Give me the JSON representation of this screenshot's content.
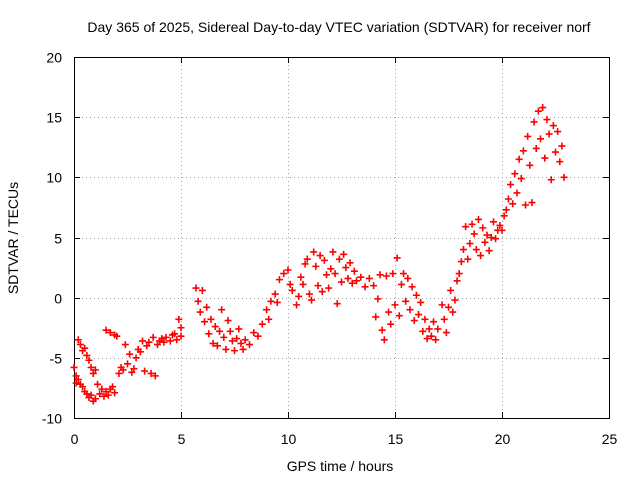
{
  "chart_data": {
    "type": "scatter",
    "title": "Day 365 of 2025, Sidereal Day-to-day VTEC variation (SDTVAR) for receiver norf",
    "xlabel": "GPS time / hours",
    "ylabel": "SDTVAR / TECUs",
    "xlim": [
      0,
      25
    ],
    "ylim": [
      -10,
      20
    ],
    "x_ticks": [
      "0",
      "5",
      "10",
      "15",
      "20",
      "25"
    ],
    "y_ticks": [
      "-10",
      "-5",
      "0",
      "5",
      "10",
      "15",
      "20"
    ],
    "grid": true,
    "marker": "+",
    "color": "#ff0000",
    "series": [
      {
        "name": "SDTVAR",
        "points": [
          [
            0.0,
            -5.8
          ],
          [
            0.1,
            -6.5
          ],
          [
            0.1,
            -7.1
          ],
          [
            0.2,
            -3.5
          ],
          [
            0.2,
            -6.8
          ],
          [
            0.3,
            -3.9
          ],
          [
            0.3,
            -7.2
          ],
          [
            0.4,
            -4.4
          ],
          [
            0.4,
            -7.4
          ],
          [
            0.5,
            -4.2
          ],
          [
            0.5,
            -7.8
          ],
          [
            0.6,
            -4.8
          ],
          [
            0.6,
            -8.0
          ],
          [
            0.7,
            -5.2
          ],
          [
            0.7,
            -8.3
          ],
          [
            0.8,
            -5.8
          ],
          [
            0.8,
            -8.1
          ],
          [
            0.9,
            -6.3
          ],
          [
            0.9,
            -8.6
          ],
          [
            1.0,
            -6.0
          ],
          [
            1.0,
            -8.4
          ],
          [
            1.1,
            -7.2
          ],
          [
            1.2,
            -8.0
          ],
          [
            1.3,
            -7.6
          ],
          [
            1.4,
            -8.2
          ],
          [
            1.5,
            -7.8
          ],
          [
            1.6,
            -8.1
          ],
          [
            1.7,
            -7.6
          ],
          [
            1.8,
            -7.4
          ],
          [
            1.9,
            -7.9
          ],
          [
            1.5,
            -2.7
          ],
          [
            1.7,
            -2.9
          ],
          [
            1.9,
            -3.1
          ],
          [
            2.0,
            -3.2
          ],
          [
            2.1,
            -6.3
          ],
          [
            2.2,
            -5.8
          ],
          [
            2.3,
            -6.0
          ],
          [
            2.4,
            -3.9
          ],
          [
            2.5,
            -5.5
          ],
          [
            2.6,
            -4.7
          ],
          [
            2.7,
            -6.2
          ],
          [
            2.8,
            -5.9
          ],
          [
            2.9,
            -5.0
          ],
          [
            3.0,
            -4.3
          ],
          [
            3.1,
            -4.5
          ],
          [
            3.2,
            -3.6
          ],
          [
            3.3,
            -6.1
          ],
          [
            3.4,
            -4.0
          ],
          [
            3.5,
            -3.7
          ],
          [
            3.6,
            -6.3
          ],
          [
            3.7,
            -3.3
          ],
          [
            3.8,
            -6.5
          ],
          [
            3.9,
            -3.9
          ],
          [
            4.0,
            -3.6
          ],
          [
            4.1,
            -3.4
          ],
          [
            4.2,
            -3.7
          ],
          [
            4.3,
            -3.3
          ],
          [
            4.5,
            -3.6
          ],
          [
            4.6,
            -3.1
          ],
          [
            4.7,
            -3.0
          ],
          [
            4.8,
            -3.5
          ],
          [
            4.9,
            -1.8
          ],
          [
            5.0,
            -2.5
          ],
          [
            5.0,
            -3.2
          ],
          [
            5.7,
            0.8
          ],
          [
            5.8,
            -0.3
          ],
          [
            5.9,
            -1.2
          ],
          [
            6.0,
            0.6
          ],
          [
            6.1,
            -2.0
          ],
          [
            6.2,
            -0.8
          ],
          [
            6.3,
            -3.0
          ],
          [
            6.4,
            -1.8
          ],
          [
            6.5,
            -3.8
          ],
          [
            6.6,
            -2.4
          ],
          [
            6.7,
            -4.0
          ],
          [
            6.8,
            -2.8
          ],
          [
            6.9,
            -1.0
          ],
          [
            7.0,
            -3.3
          ],
          [
            7.1,
            -4.3
          ],
          [
            7.2,
            -1.9
          ],
          [
            7.3,
            -2.8
          ],
          [
            7.4,
            -3.6
          ],
          [
            7.5,
            -4.4
          ],
          [
            7.6,
            -3.4
          ],
          [
            7.7,
            -2.6
          ],
          [
            7.8,
            -3.8
          ],
          [
            7.9,
            -4.3
          ],
          [
            8.0,
            -3.5
          ],
          [
            8.2,
            -3.9
          ],
          [
            8.4,
            -2.9
          ],
          [
            8.6,
            -3.2
          ],
          [
            8.8,
            -2.2
          ],
          [
            9.0,
            -1.0
          ],
          [
            9.1,
            -1.8
          ],
          [
            9.2,
            -0.3
          ],
          [
            9.4,
            0.3
          ],
          [
            9.5,
            -0.4
          ],
          [
            9.6,
            1.5
          ],
          [
            9.8,
            2.0
          ],
          [
            10.0,
            2.3
          ],
          [
            10.1,
            1.1
          ],
          [
            10.2,
            0.6
          ],
          [
            10.4,
            -0.6
          ],
          [
            10.5,
            0.1
          ],
          [
            10.6,
            1.7
          ],
          [
            10.7,
            1.1
          ],
          [
            10.8,
            2.8
          ],
          [
            10.9,
            3.2
          ],
          [
            11.0,
            0.3
          ],
          [
            11.1,
            -0.2
          ],
          [
            11.2,
            3.8
          ],
          [
            11.3,
            2.6
          ],
          [
            11.4,
            1.0
          ],
          [
            11.5,
            3.5
          ],
          [
            11.6,
            0.5
          ],
          [
            11.7,
            3.1
          ],
          [
            11.8,
            1.9
          ],
          [
            11.9,
            0.8
          ],
          [
            12.0,
            2.4
          ],
          [
            12.1,
            3.8
          ],
          [
            12.2,
            2.0
          ],
          [
            12.3,
            -0.5
          ],
          [
            12.4,
            3.2
          ],
          [
            12.5,
            1.3
          ],
          [
            12.6,
            3.6
          ],
          [
            12.7,
            2.5
          ],
          [
            12.8,
            1.6
          ],
          [
            12.9,
            2.9
          ],
          [
            13.0,
            1.2
          ],
          [
            13.1,
            2.2
          ],
          [
            13.2,
            1.4
          ],
          [
            13.4,
            1.7
          ],
          [
            13.6,
            0.9
          ],
          [
            13.8,
            1.6
          ],
          [
            14.0,
            1.0
          ],
          [
            14.1,
            -1.6
          ],
          [
            14.2,
            -0.1
          ],
          [
            14.3,
            1.9
          ],
          [
            14.4,
            -2.7
          ],
          [
            14.5,
            -3.5
          ],
          [
            14.6,
            1.8
          ],
          [
            14.7,
            -1.2
          ],
          [
            14.8,
            -2.2
          ],
          [
            14.9,
            2.0
          ],
          [
            15.0,
            -0.6
          ],
          [
            15.1,
            3.3
          ],
          [
            15.2,
            -1.5
          ],
          [
            15.3,
            1.1
          ],
          [
            15.4,
            2.0
          ],
          [
            15.5,
            -0.3
          ],
          [
            15.6,
            1.6
          ],
          [
            15.7,
            -1.0
          ],
          [
            15.8,
            0.9
          ],
          [
            15.9,
            -1.9
          ],
          [
            16.0,
            0.2
          ],
          [
            16.1,
            -1.4
          ],
          [
            16.2,
            -0.4
          ],
          [
            16.3,
            -2.8
          ],
          [
            16.4,
            -1.8
          ],
          [
            16.5,
            -3.4
          ],
          [
            16.6,
            -2.6
          ],
          [
            16.7,
            -3.2
          ],
          [
            16.8,
            -2.0
          ],
          [
            16.9,
            -3.5
          ],
          [
            17.0,
            -2.6
          ],
          [
            17.2,
            -0.6
          ],
          [
            17.3,
            -1.8
          ],
          [
            17.4,
            -2.9
          ],
          [
            17.5,
            -0.8
          ],
          [
            17.6,
            0.6
          ],
          [
            17.7,
            -1.2
          ],
          [
            17.8,
            -0.2
          ],
          [
            17.9,
            1.4
          ],
          [
            18.0,
            2.0
          ],
          [
            18.1,
            3.0
          ],
          [
            18.2,
            4.0
          ],
          [
            18.3,
            5.9
          ],
          [
            18.4,
            3.2
          ],
          [
            18.5,
            4.5
          ],
          [
            18.6,
            6.1
          ],
          [
            18.7,
            5.3
          ],
          [
            18.8,
            4.0
          ],
          [
            18.9,
            6.5
          ],
          [
            19.0,
            3.5
          ],
          [
            19.1,
            5.8
          ],
          [
            19.2,
            4.6
          ],
          [
            19.3,
            5.2
          ],
          [
            19.4,
            3.9
          ],
          [
            19.5,
            5.0
          ],
          [
            19.6,
            6.3
          ],
          [
            19.7,
            4.9
          ],
          [
            19.8,
            5.6
          ],
          [
            19.9,
            6.0
          ],
          [
            20.0,
            5.6
          ],
          [
            20.1,
            6.8
          ],
          [
            20.2,
            7.3
          ],
          [
            20.3,
            8.2
          ],
          [
            20.4,
            9.4
          ],
          [
            20.5,
            7.8
          ],
          [
            20.6,
            10.3
          ],
          [
            20.7,
            8.7
          ],
          [
            20.8,
            11.5
          ],
          [
            20.9,
            9.9
          ],
          [
            21.0,
            12.2
          ],
          [
            21.1,
            7.7
          ],
          [
            21.2,
            13.4
          ],
          [
            21.3,
            11.0
          ],
          [
            21.4,
            7.9
          ],
          [
            21.5,
            14.6
          ],
          [
            21.6,
            12.4
          ],
          [
            21.7,
            15.5
          ],
          [
            21.8,
            13.2
          ],
          [
            21.9,
            15.8
          ],
          [
            22.0,
            11.6
          ],
          [
            22.1,
            14.8
          ],
          [
            22.2,
            13.6
          ],
          [
            22.3,
            9.8
          ],
          [
            22.4,
            14.3
          ],
          [
            22.5,
            12.1
          ],
          [
            22.6,
            13.8
          ],
          [
            22.7,
            11.3
          ],
          [
            22.8,
            12.6
          ],
          [
            22.9,
            10.0
          ]
        ]
      }
    ]
  }
}
